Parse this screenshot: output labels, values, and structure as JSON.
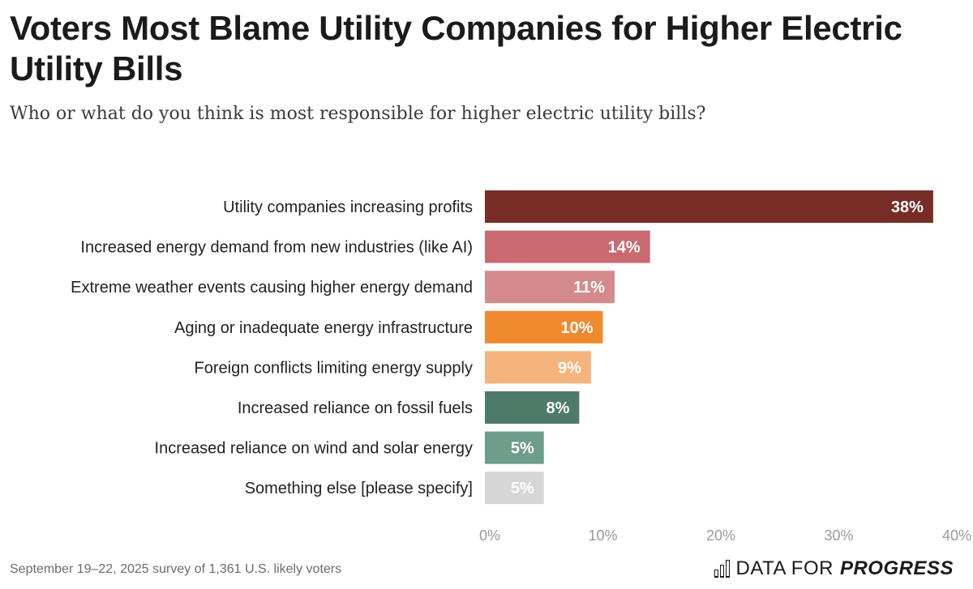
{
  "header": {
    "title": "Voters Most Blame Utility Companies for Higher Electric Utility Bills",
    "subtitle": "Who or what do you think is most responsible for higher electric utility bills?"
  },
  "footer": {
    "note": "September 19–22, 2025 survey of 1,361 U.S. likely voters",
    "brand_prefix": "DATA FOR",
    "brand_strong": "PROGRESS",
    "brand_icon": "bar-chart-icon"
  },
  "chart_data": {
    "type": "bar",
    "orientation": "horizontal",
    "categories": [
      "Utility companies increasing profits",
      "Increased energy demand from new industries (like AI)",
      "Extreme weather events causing higher energy demand",
      "Aging or inadequate energy infrastructure",
      "Foreign conflicts limiting energy supply",
      "Increased reliance on fossil fuels",
      "Increased reliance on wind and solar energy",
      "Something else [please specify]"
    ],
    "values": [
      38,
      14,
      11,
      10,
      9,
      8,
      5,
      5
    ],
    "value_labels": [
      "38%",
      "14%",
      "11%",
      "10%",
      "9%",
      "8%",
      "5%",
      "5%"
    ],
    "colors": [
      "#772c26",
      "#c96a70",
      "#d48a8c",
      "#ef8a2e",
      "#f5b47c",
      "#4e7a6a",
      "#6d9e8b",
      "#d6d6d6"
    ],
    "xlim": [
      0,
      40
    ],
    "xticks": [
      0,
      10,
      20,
      30,
      40
    ],
    "xtick_labels": [
      "0%",
      "10%",
      "20%",
      "30%",
      "40%"
    ],
    "grid": false,
    "legend": "none"
  }
}
